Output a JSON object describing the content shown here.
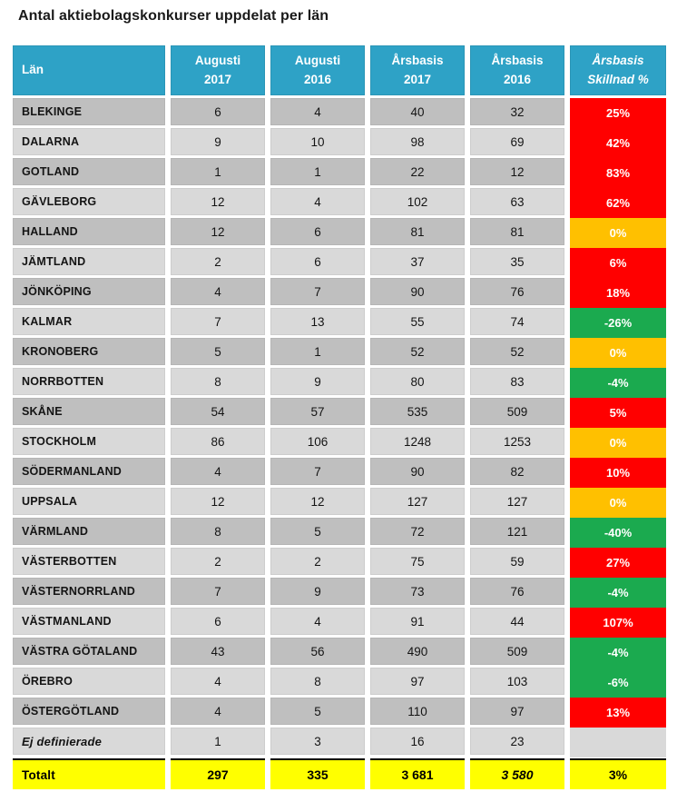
{
  "title": "Antal aktiebolagskonkurser uppdelat per län",
  "colors": {
    "header_bg": "#2EA2C6",
    "row_dark": "#BFBFBF",
    "row_light": "#D9D9D9",
    "increase_red": "#FF0000",
    "zero_orange": "#FFC000",
    "decrease_green": "#1BAA4F",
    "total_yellow": "#FFFF00"
  },
  "chart_data": {
    "type": "table",
    "title": "Antal aktiebolagskonkurser uppdelat per län",
    "columns": [
      {
        "line1": "Län",
        "line2": ""
      },
      {
        "line1": "Augusti",
        "line2": "2017"
      },
      {
        "line1": "Augusti",
        "line2": "2016"
      },
      {
        "line1": "Årsbasis",
        "line2": "2017"
      },
      {
        "line1": "Årsbasis",
        "line2": "2016"
      },
      {
        "line1": "Årsbasis",
        "line2": "Skillnad %"
      }
    ],
    "rows": [
      {
        "lan": "BLEKINGE",
        "aug_2017": "6",
        "aug_2016": "4",
        "ars_2017": "40",
        "ars_2016": "32",
        "skillnad": "25%",
        "skillnad_color": "increase"
      },
      {
        "lan": "DALARNA",
        "aug_2017": "9",
        "aug_2016": "10",
        "ars_2017": "98",
        "ars_2016": "69",
        "skillnad": "42%",
        "skillnad_color": "increase"
      },
      {
        "lan": "GOTLAND",
        "aug_2017": "1",
        "aug_2016": "1",
        "ars_2017": "22",
        "ars_2016": "12",
        "skillnad": "83%",
        "skillnad_color": "increase"
      },
      {
        "lan": "GÄVLEBORG",
        "aug_2017": "12",
        "aug_2016": "4",
        "ars_2017": "102",
        "ars_2016": "63",
        "skillnad": "62%",
        "skillnad_color": "increase"
      },
      {
        "lan": "HALLAND",
        "aug_2017": "12",
        "aug_2016": "6",
        "ars_2017": "81",
        "ars_2016": "81",
        "skillnad": "0%",
        "skillnad_color": "zero"
      },
      {
        "lan": "JÄMTLAND",
        "aug_2017": "2",
        "aug_2016": "6",
        "ars_2017": "37",
        "ars_2016": "35",
        "skillnad": "6%",
        "skillnad_color": "increase"
      },
      {
        "lan": "JÖNKÖPING",
        "aug_2017": "4",
        "aug_2016": "7",
        "ars_2017": "90",
        "ars_2016": "76",
        "skillnad": "18%",
        "skillnad_color": "increase"
      },
      {
        "lan": "KALMAR",
        "aug_2017": "7",
        "aug_2016": "13",
        "ars_2017": "55",
        "ars_2016": "74",
        "skillnad": "-26%",
        "skillnad_color": "decrease"
      },
      {
        "lan": "KRONOBERG",
        "aug_2017": "5",
        "aug_2016": "1",
        "ars_2017": "52",
        "ars_2016": "52",
        "skillnad": "0%",
        "skillnad_color": "zero"
      },
      {
        "lan": "NORRBOTTEN",
        "aug_2017": "8",
        "aug_2016": "9",
        "ars_2017": "80",
        "ars_2016": "83",
        "skillnad": "-4%",
        "skillnad_color": "decrease"
      },
      {
        "lan": "SKÅNE",
        "aug_2017": "54",
        "aug_2016": "57",
        "ars_2017": "535",
        "ars_2016": "509",
        "skillnad": "5%",
        "skillnad_color": "increase"
      },
      {
        "lan": "STOCKHOLM",
        "aug_2017": "86",
        "aug_2016": "106",
        "ars_2017": "1248",
        "ars_2016": "1253",
        "skillnad": "0%",
        "skillnad_color": "zero"
      },
      {
        "lan": "SÖDERMANLAND",
        "aug_2017": "4",
        "aug_2016": "7",
        "ars_2017": "90",
        "ars_2016": "82",
        "skillnad": "10%",
        "skillnad_color": "increase"
      },
      {
        "lan": "UPPSALA",
        "aug_2017": "12",
        "aug_2016": "12",
        "ars_2017": "127",
        "ars_2016": "127",
        "skillnad": "0%",
        "skillnad_color": "zero"
      },
      {
        "lan": "VÄRMLAND",
        "aug_2017": "8",
        "aug_2016": "5",
        "ars_2017": "72",
        "ars_2016": "121",
        "skillnad": "-40%",
        "skillnad_color": "decrease"
      },
      {
        "lan": "VÄSTERBOTTEN",
        "aug_2017": "2",
        "aug_2016": "2",
        "ars_2017": "75",
        "ars_2016": "59",
        "skillnad": "27%",
        "skillnad_color": "increase"
      },
      {
        "lan": "VÄSTERNORRLAND",
        "aug_2017": "7",
        "aug_2016": "9",
        "ars_2017": "73",
        "ars_2016": "76",
        "skillnad": "-4%",
        "skillnad_color": "decrease"
      },
      {
        "lan": "VÄSTMANLAND",
        "aug_2017": "6",
        "aug_2016": "4",
        "ars_2017": "91",
        "ars_2016": "44",
        "skillnad": "107%",
        "skillnad_color": "increase"
      },
      {
        "lan": "VÄSTRA GÖTALAND",
        "aug_2017": "43",
        "aug_2016": "56",
        "ars_2017": "490",
        "ars_2016": "509",
        "skillnad": "-4%",
        "skillnad_color": "decrease"
      },
      {
        "lan": "ÖREBRO",
        "aug_2017": "4",
        "aug_2016": "8",
        "ars_2017": "97",
        "ars_2016": "103",
        "skillnad": "-6%",
        "skillnad_color": "decrease"
      },
      {
        "lan": "ÖSTERGÖTLAND",
        "aug_2017": "4",
        "aug_2016": "5",
        "ars_2017": "110",
        "ars_2016": "97",
        "skillnad": "13%",
        "skillnad_color": "increase"
      },
      {
        "lan": "Ej definierade",
        "aug_2017": "1",
        "aug_2016": "3",
        "ars_2017": "16",
        "ars_2016": "23",
        "skillnad": "",
        "skillnad_color": "",
        "italic": true
      }
    ],
    "total": {
      "lan": "Totalt",
      "aug_2017": "297",
      "aug_2016": "335",
      "ars_2017": "3 681",
      "ars_2016": "3 580",
      "skillnad": "3%"
    }
  }
}
